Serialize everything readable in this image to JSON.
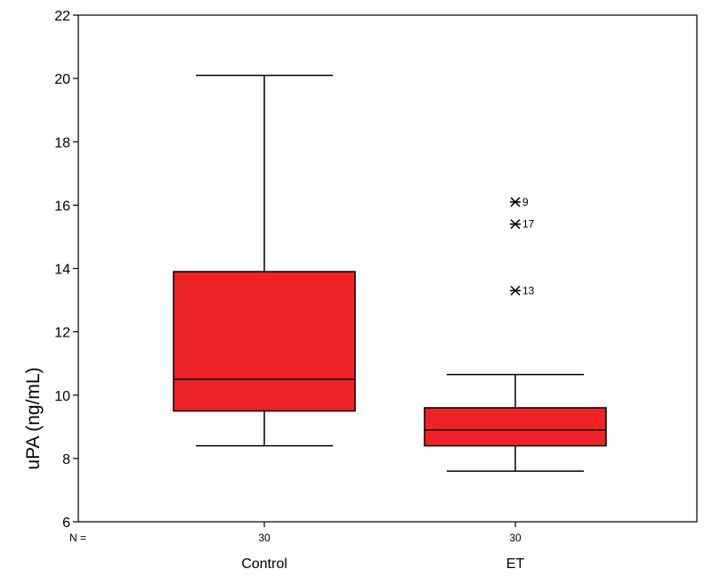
{
  "chart_data": {
    "type": "boxplot",
    "title": "",
    "xlabel": "",
    "ylabel": "uPA (ng/mL)",
    "ylim": [
      6,
      22
    ],
    "yticks": [
      6,
      8,
      10,
      12,
      14,
      16,
      18,
      20,
      22
    ],
    "n_label": "N =",
    "box_color": "#ee2327",
    "grid": false,
    "categories": [
      "Control",
      "ET"
    ],
    "boxes": [
      {
        "name": "Control",
        "n": "30",
        "whisker_low": 8.4,
        "q1": 9.5,
        "median": 10.5,
        "q3": 13.9,
        "whisker_high": 20.1,
        "outliers": []
      },
      {
        "name": "ET",
        "n": "30",
        "whisker_low": 7.6,
        "q1": 8.4,
        "median": 8.9,
        "q3": 9.6,
        "whisker_high": 10.65,
        "outliers": [
          {
            "value": 16.1,
            "label": "9"
          },
          {
            "value": 15.4,
            "label": "17"
          },
          {
            "value": 13.3,
            "label": "13"
          }
        ]
      }
    ]
  }
}
